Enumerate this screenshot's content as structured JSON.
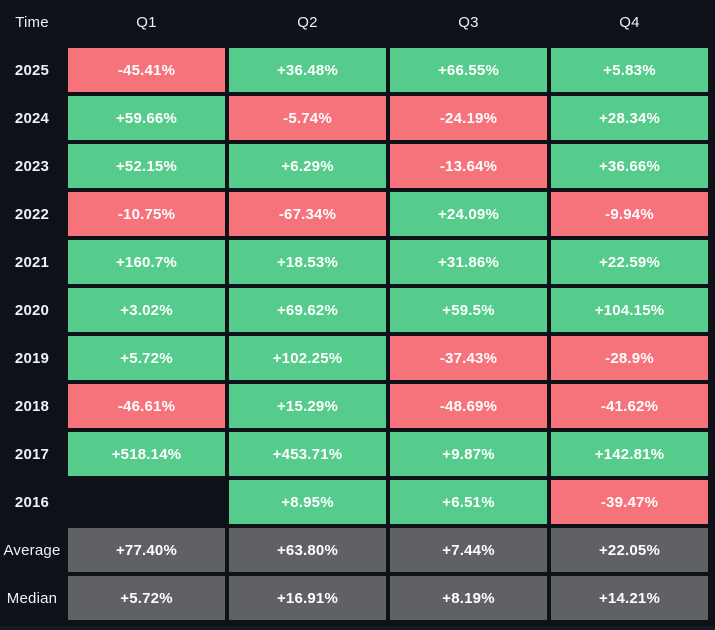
{
  "colors": {
    "background": "#0e1117",
    "green": "#55cb8c",
    "red": "#f7737c",
    "gray": "#606164",
    "cell_text": "#ffffff",
    "label_text": "#eef1f6",
    "bottom_strip": "#161920"
  },
  "table": {
    "header": {
      "time": "Time",
      "quarters": [
        "Q1",
        "Q2",
        "Q3",
        "Q4"
      ]
    },
    "rows": [
      {
        "label": "2025",
        "summary": false,
        "cells": [
          {
            "text": "-45.41%",
            "tone": "red"
          },
          {
            "text": "+36.48%",
            "tone": "green"
          },
          {
            "text": "+66.55%",
            "tone": "green"
          },
          {
            "text": "+5.83%",
            "tone": "green"
          }
        ]
      },
      {
        "label": "2024",
        "summary": false,
        "cells": [
          {
            "text": "+59.66%",
            "tone": "green"
          },
          {
            "text": "-5.74%",
            "tone": "red"
          },
          {
            "text": "-24.19%",
            "tone": "red"
          },
          {
            "text": "+28.34%",
            "tone": "green"
          }
        ]
      },
      {
        "label": "2023",
        "summary": false,
        "cells": [
          {
            "text": "+52.15%",
            "tone": "green"
          },
          {
            "text": "+6.29%",
            "tone": "green"
          },
          {
            "text": "-13.64%",
            "tone": "red"
          },
          {
            "text": "+36.66%",
            "tone": "green"
          }
        ]
      },
      {
        "label": "2022",
        "summary": false,
        "cells": [
          {
            "text": "-10.75%",
            "tone": "red"
          },
          {
            "text": "-67.34%",
            "tone": "red"
          },
          {
            "text": "+24.09%",
            "tone": "green"
          },
          {
            "text": "-9.94%",
            "tone": "red"
          }
        ]
      },
      {
        "label": "2021",
        "summary": false,
        "cells": [
          {
            "text": "+160.7%",
            "tone": "green"
          },
          {
            "text": "+18.53%",
            "tone": "green"
          },
          {
            "text": "+31.86%",
            "tone": "green"
          },
          {
            "text": "+22.59%",
            "tone": "green"
          }
        ]
      },
      {
        "label": "2020",
        "summary": false,
        "cells": [
          {
            "text": "+3.02%",
            "tone": "green"
          },
          {
            "text": "+69.62%",
            "tone": "green"
          },
          {
            "text": "+59.5%",
            "tone": "green"
          },
          {
            "text": "+104.15%",
            "tone": "green"
          }
        ]
      },
      {
        "label": "2019",
        "summary": false,
        "cells": [
          {
            "text": "+5.72%",
            "tone": "green"
          },
          {
            "text": "+102.25%",
            "tone": "green"
          },
          {
            "text": "-37.43%",
            "tone": "red"
          },
          {
            "text": "-28.9%",
            "tone": "red"
          }
        ]
      },
      {
        "label": "2018",
        "summary": false,
        "cells": [
          {
            "text": "-46.61%",
            "tone": "red"
          },
          {
            "text": "+15.29%",
            "tone": "green"
          },
          {
            "text": "-48.69%",
            "tone": "red"
          },
          {
            "text": "-41.62%",
            "tone": "red"
          }
        ]
      },
      {
        "label": "2017",
        "summary": false,
        "cells": [
          {
            "text": "+518.14%",
            "tone": "green"
          },
          {
            "text": "+453.71%",
            "tone": "green"
          },
          {
            "text": "+9.87%",
            "tone": "green"
          },
          {
            "text": "+142.81%",
            "tone": "green"
          }
        ]
      },
      {
        "label": "2016",
        "summary": false,
        "cells": [
          {
            "text": "",
            "tone": "empty"
          },
          {
            "text": "+8.95%",
            "tone": "green"
          },
          {
            "text": "+6.51%",
            "tone": "green"
          },
          {
            "text": "-39.47%",
            "tone": "red"
          }
        ]
      },
      {
        "label": "Average",
        "summary": true,
        "cells": [
          {
            "text": "+77.40%",
            "tone": "gray"
          },
          {
            "text": "+63.80%",
            "tone": "gray"
          },
          {
            "text": "+7.44%",
            "tone": "gray"
          },
          {
            "text": "+22.05%",
            "tone": "gray"
          }
        ]
      },
      {
        "label": "Median",
        "summary": true,
        "cells": [
          {
            "text": "+5.72%",
            "tone": "gray"
          },
          {
            "text": "+16.91%",
            "tone": "gray"
          },
          {
            "text": "+8.19%",
            "tone": "gray"
          },
          {
            "text": "+14.21%",
            "tone": "gray"
          }
        ]
      }
    ]
  },
  "chart_data": {
    "type": "heatmap",
    "row_header": "Time",
    "columns": [
      "Q1",
      "Q2",
      "Q3",
      "Q4"
    ],
    "rows": [
      "2025",
      "2024",
      "2023",
      "2022",
      "2021",
      "2020",
      "2019",
      "2018",
      "2017",
      "2016",
      "Average",
      "Median"
    ],
    "values": [
      [
        -45.41,
        36.48,
        66.55,
        5.83
      ],
      [
        59.66,
        -5.74,
        -24.19,
        28.34
      ],
      [
        52.15,
        6.29,
        -13.64,
        36.66
      ],
      [
        -10.75,
        -67.34,
        24.09,
        -9.94
      ],
      [
        160.7,
        18.53,
        31.86,
        22.59
      ],
      [
        3.02,
        69.62,
        59.5,
        104.15
      ],
      [
        5.72,
        102.25,
        -37.43,
        -28.9
      ],
      [
        -46.61,
        15.29,
        -48.69,
        -41.62
      ],
      [
        518.14,
        453.71,
        9.87,
        142.81
      ],
      [
        null,
        8.95,
        6.51,
        -39.47
      ],
      [
        77.4,
        63.8,
        7.44,
        22.05
      ],
      [
        5.72,
        16.91,
        8.19,
        14.21
      ]
    ],
    "unit": "%",
    "legend_position": "none",
    "color_rule": "positive=green, negative=red, summary-rows=gray, missing=blank"
  }
}
